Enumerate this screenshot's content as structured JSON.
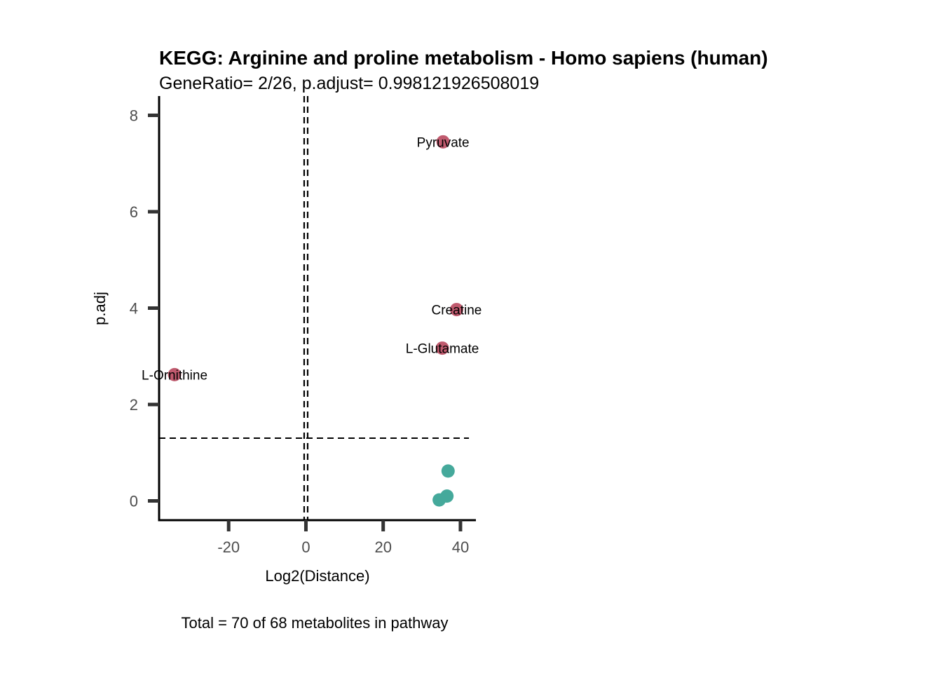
{
  "chart_data": {
    "type": "scatter",
    "title": "KEGG: Arginine and proline metabolism - Homo sapiens (human)",
    "subtitle": "GeneRatio= 2/26, p.adjust= 0.998121926508019",
    "xlabel": "Log2(Distance)",
    "ylabel": "p.adj",
    "caption": "Total = 70 of 68 metabolites in pathway",
    "xlim": [
      -38,
      44
    ],
    "ylim": [
      -0.4,
      8.4
    ],
    "x_ticks": [
      -20,
      0,
      20,
      40
    ],
    "x_tick_labels": [
      "-20",
      "0",
      "20",
      "40"
    ],
    "y_ticks": [
      0,
      2,
      4,
      6,
      8
    ],
    "y_tick_labels": [
      "0",
      "2",
      "4",
      "6",
      "8"
    ],
    "vlines": [
      0
    ],
    "hline": 1.301,
    "grid": false,
    "legend": "none",
    "colors": {
      "significant": "#c05a6e",
      "nonsignificant": "#45a99b"
    },
    "points": [
      {
        "x": 35.5,
        "y": 7.45,
        "label": "Pyruvate",
        "group": "significant"
      },
      {
        "x": 39.0,
        "y": 3.97,
        "label": "Creatine",
        "group": "significant"
      },
      {
        "x": 35.3,
        "y": 3.17,
        "label": "L-Glutamate",
        "group": "significant"
      },
      {
        "x": -34.0,
        "y": 2.62,
        "label": "L-Ornithine",
        "group": "significant"
      },
      {
        "x": 36.8,
        "y": 0.62,
        "label": "",
        "group": "nonsignificant"
      },
      {
        "x": 36.5,
        "y": 0.1,
        "label": "",
        "group": "nonsignificant"
      },
      {
        "x": 34.5,
        "y": 0.02,
        "label": "",
        "group": "nonsignificant"
      }
    ]
  }
}
